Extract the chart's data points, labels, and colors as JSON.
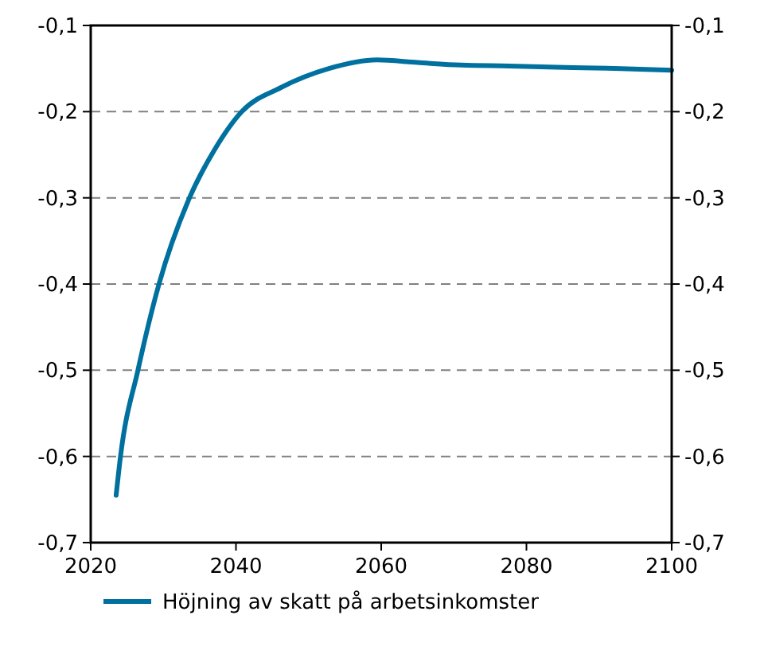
{
  "chart_data": {
    "type": "line",
    "x": [
      2023.5,
      2024.1,
      2026.5,
      2029.4,
      2033.6,
      2037,
      2040.8,
      2046.2,
      2052.8,
      2059.4,
      2065,
      2071,
      2077.6,
      2086.4,
      2093,
      2100
    ],
    "series": [
      {
        "name": "Höjning av skatt på arbetsinkomster",
        "color": "#00709f",
        "values": [
          -0.645,
          -0.6,
          -0.5,
          -0.4,
          -0.3,
          -0.245,
          -0.2,
          -0.172,
          -0.15,
          -0.14,
          -0.143,
          -0.146,
          -0.147,
          -0.149,
          -0.15,
          -0.152
        ]
      }
    ],
    "xlim": [
      2020,
      2100
    ],
    "xticks": [
      2020,
      2040,
      2060,
      2080,
      2100
    ],
    "ylim": [
      -0.7,
      -0.1
    ],
    "yticks": [
      {
        "value": -0.7,
        "label": "-0,7"
      },
      {
        "value": -0.6,
        "label": "-0,6"
      },
      {
        "value": -0.5,
        "label": "-0,5"
      },
      {
        "value": -0.4,
        "label": "-0,4"
      },
      {
        "value": -0.3,
        "label": "-0,3"
      },
      {
        "value": -0.2,
        "label": "-0,2"
      },
      {
        "value": -0.1,
        "label": "-0,1"
      }
    ],
    "y2lim": [
      -0.7,
      -0.1
    ],
    "y2ticks": [
      {
        "value": -0.7,
        "label": "-0,7"
      },
      {
        "value": -0.6,
        "label": "-0,6"
      },
      {
        "value": -0.5,
        "label": "-0,5"
      },
      {
        "value": -0.4,
        "label": "-0,4"
      },
      {
        "value": -0.3,
        "label": "-0,3"
      },
      {
        "value": -0.2,
        "label": "-0,2"
      },
      {
        "value": -0.1,
        "label": "-0,1"
      }
    ],
    "grid": "y",
    "legend": "bottom",
    "line_style": "solid",
    "marker": "none"
  }
}
